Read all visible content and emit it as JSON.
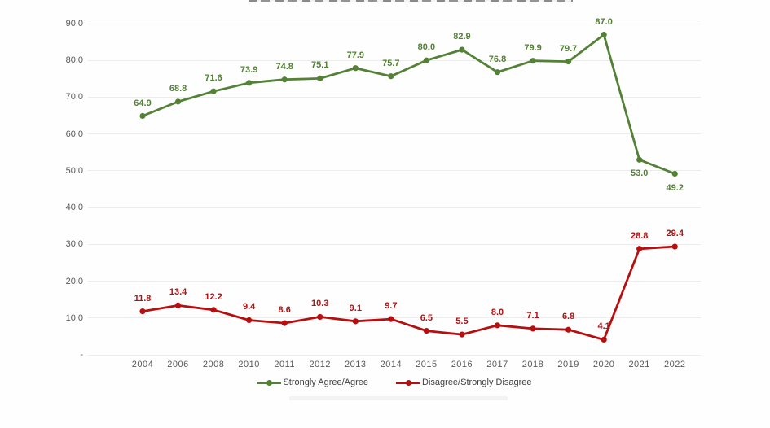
{
  "chart_data": {
    "type": "line",
    "x": [
      "2004",
      "2006",
      "2008",
      "2010",
      "2011",
      "2012",
      "2013",
      "2014",
      "2015",
      "2016",
      "2017",
      "2018",
      "2019",
      "2020",
      "2021",
      "2022"
    ],
    "series": [
      {
        "name": "Strongly Agree/Agree",
        "color": "#538135",
        "values": [
          64.9,
          68.8,
          71.6,
          73.9,
          74.8,
          75.1,
          77.9,
          75.7,
          80.0,
          82.9,
          76.8,
          79.9,
          79.7,
          87.0,
          53.0,
          49.2
        ],
        "labels": [
          "64.9",
          "68.8",
          "71.6",
          "73.9",
          "74.8",
          "75.1",
          "77.9",
          "75.7",
          "80.0",
          "82.9",
          "76.8",
          "79.9",
          "79.7",
          "87.0",
          "53.0",
          "49.2"
        ],
        "label_below_indices": [
          14,
          15
        ]
      },
      {
        "name": "Disagree/Strongly Disagree",
        "color": "#b70f0f",
        "values": [
          11.8,
          13.4,
          12.2,
          9.4,
          8.6,
          10.3,
          9.1,
          9.7,
          6.5,
          5.5,
          8.0,
          7.1,
          6.8,
          4.1,
          28.8,
          29.4
        ],
        "labels": [
          "11.8",
          "13.4",
          "12.2",
          "9.4",
          "8.6",
          "10.3",
          "9.1",
          "9.7",
          "6.5",
          "5.5",
          "8.0",
          "7.1",
          "6.8",
          "4.1",
          "28.8",
          "29.4"
        ],
        "label_below_indices": []
      }
    ],
    "y_ticks": [
      {
        "value": 90,
        "label": "90.0"
      },
      {
        "value": 80,
        "label": "80.0"
      },
      {
        "value": 70,
        "label": "70.0"
      },
      {
        "value": 60,
        "label": "60.0"
      },
      {
        "value": 50,
        "label": "50.0"
      },
      {
        "value": 40,
        "label": "40.0"
      },
      {
        "value": 30,
        "label": "30.0"
      },
      {
        "value": 20,
        "label": "20.0"
      },
      {
        "value": 10,
        "label": "10.0"
      },
      {
        "value": 0,
        "label": "-"
      }
    ],
    "ylim": [
      0,
      90
    ],
    "grid": true,
    "legend_position": "bottom",
    "colors": {
      "grid": "#ececec",
      "axis_text": "#595959",
      "legend_text": "#404040"
    }
  }
}
